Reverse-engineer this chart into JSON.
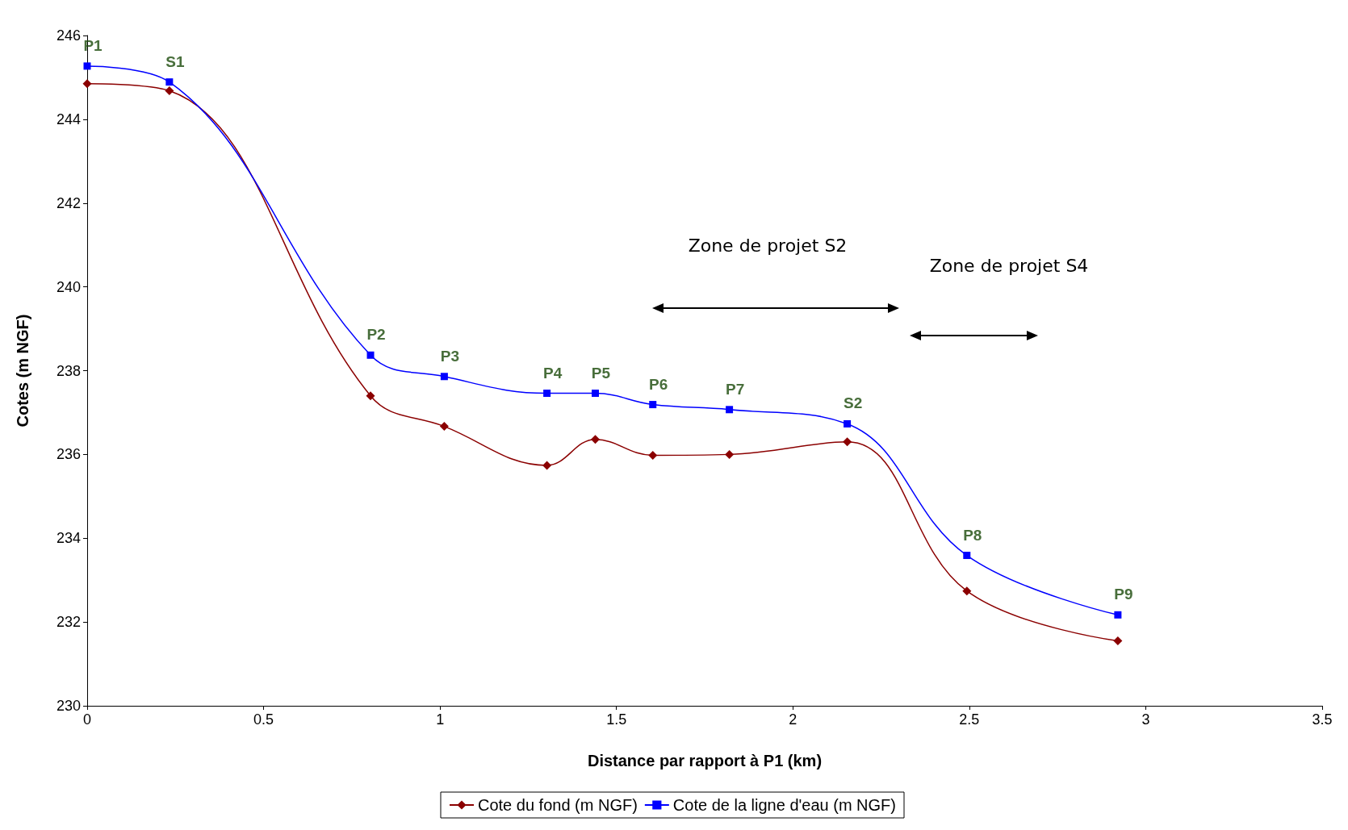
{
  "chart_data": {
    "type": "line",
    "xlabel": "Distance par rapport à P1 (km)",
    "ylabel": "Cotes (m NGF)",
    "x": [
      0,
      0.233,
      0.803,
      1.012,
      1.303,
      1.44,
      1.603,
      1.82,
      2.154,
      2.493,
      2.921
    ],
    "series": [
      {
        "name": "Cote du fond (m NGF)",
        "color": "#8b0000",
        "marker": "diamond",
        "values": [
          244.85,
          244.68,
          237.4,
          236.67,
          235.74,
          236.36,
          235.98,
          236.0,
          236.3,
          232.74,
          231.55
        ]
      },
      {
        "name": "Cote de la ligne d'eau (m NGF)",
        "color": "#0000ff",
        "marker": "square",
        "values": [
          245.27,
          244.89,
          238.37,
          237.86,
          237.46,
          237.46,
          237.19,
          237.07,
          236.73,
          233.59,
          232.17
        ]
      }
    ],
    "xlim": [
      0,
      3.5
    ],
    "xticks": [
      0,
      0.5,
      1,
      1.5,
      2,
      2.5,
      3,
      3.5
    ],
    "ylim": [
      230,
      246
    ],
    "yticks": [
      230,
      232,
      234,
      236,
      238,
      240,
      242,
      244,
      246
    ],
    "grid": false,
    "legend": "bottom",
    "annotations": [
      {
        "text": "P1",
        "x": 0,
        "y": 245.27
      },
      {
        "text": "S1",
        "x": 0.233,
        "y": 244.89
      },
      {
        "text": "P2",
        "x": 0.803,
        "y": 238.37
      },
      {
        "text": "P3",
        "x": 1.012,
        "y": 237.86
      },
      {
        "text": "P4",
        "x": 1.303,
        "y": 237.46
      },
      {
        "text": "P5",
        "x": 1.44,
        "y": 237.46
      },
      {
        "text": "P6",
        "x": 1.603,
        "y": 237.19
      },
      {
        "text": "P7",
        "x": 1.82,
        "y": 237.07
      },
      {
        "text": "S2",
        "x": 2.154,
        "y": 236.73
      },
      {
        "text": "P8",
        "x": 2.493,
        "y": 233.59
      },
      {
        "text": "P9",
        "x": 2.921,
        "y": 232.17
      },
      "Zone de projet S2",
      "Zone de projet S4"
    ]
  }
}
